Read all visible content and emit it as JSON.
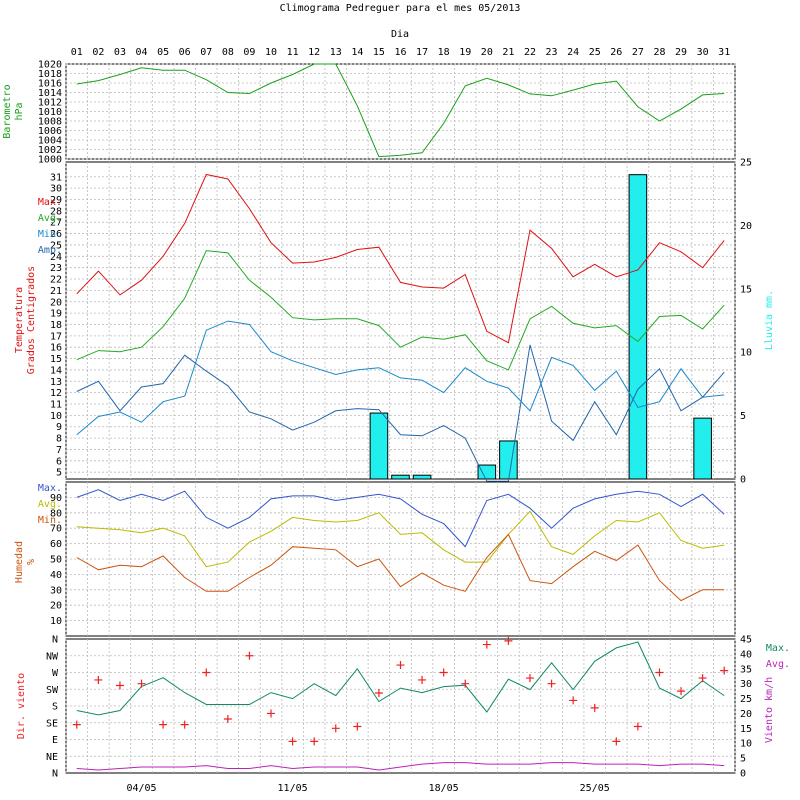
{
  "title": "Climograma Pedreguer para el mes 05/2013",
  "day_axis_label": "Dia",
  "days": [
    "01",
    "02",
    "03",
    "04",
    "05",
    "06",
    "07",
    "08",
    "09",
    "10",
    "11",
    "12",
    "13",
    "14",
    "15",
    "16",
    "17",
    "18",
    "19",
    "20",
    "21",
    "22",
    "23",
    "24",
    "25",
    "26",
    "27",
    "28",
    "29",
    "30",
    "31"
  ],
  "date_labels": [
    {
      "day": 4,
      "label": "04/05"
    },
    {
      "day": 11,
      "label": "11/05"
    },
    {
      "day": 18,
      "label": "18/05"
    },
    {
      "day": 25,
      "label": "25/05"
    }
  ],
  "colors": {
    "pressure": "#1aa01a",
    "max": "#dd1111",
    "avg": "#22aa22",
    "min": "#1a88cc",
    "amp": "#2266aa",
    "rain": "#22eeee",
    "hum_max": "#3355cc",
    "hum_avg": "#bbbb00",
    "hum_min": "#cc5511",
    "wind_max": "#118866",
    "wind_avg": "#bb22bb",
    "wind_dir": "#ee2222"
  },
  "chart_data": [
    {
      "type": "line",
      "ylabel": [
        "Barometro",
        "hPa"
      ],
      "ylim": [
        1000,
        1020
      ],
      "yticks": [
        "1000",
        "1002",
        "1004",
        "1006",
        "1008",
        "1010",
        "1012",
        "1014",
        "1016",
        "1018",
        "1020"
      ],
      "series": [
        {
          "values": [
            1015.8,
            1016.5,
            1017.8,
            1019.2,
            1018.7,
            1018.7,
            1016.7,
            1014.0,
            1013.8,
            1016.0,
            1017.8,
            1020.0,
            1020.0,
            1011.2,
            1000.5,
            1000.8,
            1001.3,
            1007.5,
            1015.4,
            1017.0,
            1015.6,
            1013.7,
            1013.3,
            1014.5,
            1015.8,
            1016.4,
            1011.0,
            1008.0,
            1010.5,
            1013.5,
            1013.8
          ]
        }
      ]
    },
    {
      "type": "line",
      "ylabel": [
        "Temperatura",
        "Grados Centigrados"
      ],
      "ylim": [
        4.4,
        32.3
      ],
      "yticks": [
        "5",
        "6",
        "7",
        "8",
        "9",
        "10",
        "11",
        "12",
        "13",
        "14",
        "15",
        "16",
        "17",
        "18",
        "19",
        "20",
        "21",
        "22",
        "23",
        "24",
        "25",
        "26",
        "27",
        "28",
        "29",
        "30",
        "31"
      ],
      "legend": [
        "Max.",
        "Avg.",
        "Min.",
        "Amp."
      ],
      "series": [
        {
          "name": "Max.",
          "values": [
            20.7,
            22.7,
            20.6,
            21.9,
            24.0,
            26.9,
            31.2,
            30.8,
            28.2,
            25.2,
            23.4,
            23.5,
            23.9,
            24.6,
            24.8,
            21.7,
            21.3,
            21.2,
            22.4,
            17.4,
            16.4,
            26.3,
            24.7,
            22.2,
            23.3,
            22.2,
            22.8,
            25.2,
            24.4,
            23.0,
            25.4
          ]
        },
        {
          "name": "Avg.",
          "values": [
            14.9,
            15.7,
            15.6,
            16.0,
            17.8,
            20.3,
            24.5,
            24.3,
            21.9,
            20.4,
            18.6,
            18.4,
            18.5,
            18.5,
            17.9,
            16.0,
            16.9,
            16.7,
            17.1,
            14.8,
            14.0,
            18.5,
            19.6,
            18.1,
            17.7,
            17.9,
            16.5,
            18.7,
            18.8,
            17.6,
            19.7
          ]
        },
        {
          "name": "Min.",
          "values": [
            8.3,
            9.9,
            10.3,
            9.4,
            11.2,
            11.7,
            17.5,
            18.3,
            18.0,
            15.6,
            14.8,
            14.2,
            13.6,
            14.0,
            14.2,
            13.3,
            13.1,
            12.0,
            14.2,
            13.0,
            12.4,
            10.4,
            15.1,
            14.4,
            12.2,
            13.9,
            10.7,
            11.2,
            14.1,
            11.6,
            11.8
          ]
        },
        {
          "name": "Amp.",
          "values": [
            12.1,
            13.0,
            10.4,
            12.5,
            12.8,
            15.3,
            13.9,
            12.6,
            10.3,
            9.7,
            8.7,
            9.4,
            10.4,
            10.6,
            10.5,
            8.3,
            8.2,
            9.1,
            8.0,
            4.2,
            4.2,
            16.2,
            9.5,
            7.8,
            11.2,
            8.3,
            12.3,
            14.1,
            10.4,
            11.6,
            13.8
          ]
        }
      ]
    },
    {
      "type": "bar",
      "ylabel": "Lluvia mm.",
      "ylim": [
        0,
        25
      ],
      "yticks": [
        "0",
        "5",
        "10",
        "15",
        "20",
        "25"
      ],
      "values": [
        0,
        0,
        0,
        0,
        0,
        0,
        0,
        0,
        0,
        0,
        0,
        0,
        0,
        0,
        5.2,
        0.3,
        0.3,
        0,
        0,
        1.1,
        3.0,
        0,
        0,
        0,
        0,
        0,
        24.0,
        0,
        0,
        4.8,
        0
      ]
    },
    {
      "type": "line",
      "ylabel": [
        "Humedad",
        "%"
      ],
      "ylim": [
        0,
        100
      ],
      "yticks": [
        "10",
        "20",
        "30",
        "40",
        "50",
        "60",
        "70",
        "80",
        "90"
      ],
      "legend": [
        "Max.",
        "Avg.",
        "Min."
      ],
      "series": [
        {
          "name": "Max.",
          "values": [
            90,
            95,
            88,
            92,
            88,
            94,
            77,
            70,
            77,
            89,
            91,
            91,
            88,
            90,
            92,
            89,
            79,
            73,
            58,
            88,
            92,
            83,
            70,
            83,
            89,
            92,
            94,
            92,
            84,
            92,
            79
          ]
        },
        {
          "name": "Avg.",
          "values": [
            71,
            70,
            69,
            67,
            70,
            65,
            45,
            48,
            61,
            68,
            77,
            75,
            74,
            75,
            80,
            66,
            67,
            56,
            48,
            48,
            66,
            81,
            58,
            53,
            65,
            75,
            74,
            80,
            62,
            57,
            59
          ]
        },
        {
          "name": "Min.",
          "values": [
            51,
            43,
            46,
            45,
            52,
            38,
            29,
            29,
            38,
            46,
            58,
            57,
            56,
            45,
            50,
            32,
            41,
            33,
            29,
            51,
            66,
            36,
            34,
            45,
            55,
            49,
            59,
            36,
            23,
            30,
            30
          ]
        }
      ]
    },
    {
      "type": "line",
      "ylabel": "Viento km/h",
      "ylim": [
        0,
        45
      ],
      "yticks": [
        "0",
        "5",
        "10",
        "15",
        "20",
        "25",
        "30",
        "35",
        "40",
        "45"
      ],
      "legend": [
        "Max.",
        "Avg."
      ],
      "series": [
        {
          "name": "Max.",
          "values": [
            21,
            19.5,
            21,
            29,
            32,
            27,
            23,
            23,
            23,
            27,
            25,
            30,
            26,
            35,
            24,
            28.5,
            27,
            29,
            29.5,
            20.5,
            31.5,
            28,
            37,
            28,
            37.5,
            42,
            44,
            28.5,
            25,
            31,
            26
          ]
        },
        {
          "name": "Avg.",
          "values": [
            1.5,
            1,
            1.5,
            2,
            2,
            2,
            2.5,
            1.5,
            1.5,
            2.5,
            1.5,
            2,
            2,
            2,
            1,
            2,
            3,
            3.5,
            3.5,
            3,
            3,
            3,
            3.5,
            3.5,
            3,
            3,
            3,
            2.5,
            3,
            3,
            2.5
          ]
        }
      ]
    },
    {
      "type": "scatter",
      "ylabel": "Dir. viento",
      "categories": [
        "N",
        "NE",
        "E",
        "SE",
        "S",
        "SW",
        "W",
        "NW",
        "N"
      ],
      "dir_deg": [
        130,
        250,
        235,
        240,
        130,
        130,
        270,
        145,
        315,
        160,
        85,
        85,
        120,
        125,
        215,
        290,
        250,
        270,
        240,
        345,
        355,
        255,
        240,
        195,
        175,
        85,
        125,
        270,
        220,
        255,
        275
      ]
    }
  ]
}
